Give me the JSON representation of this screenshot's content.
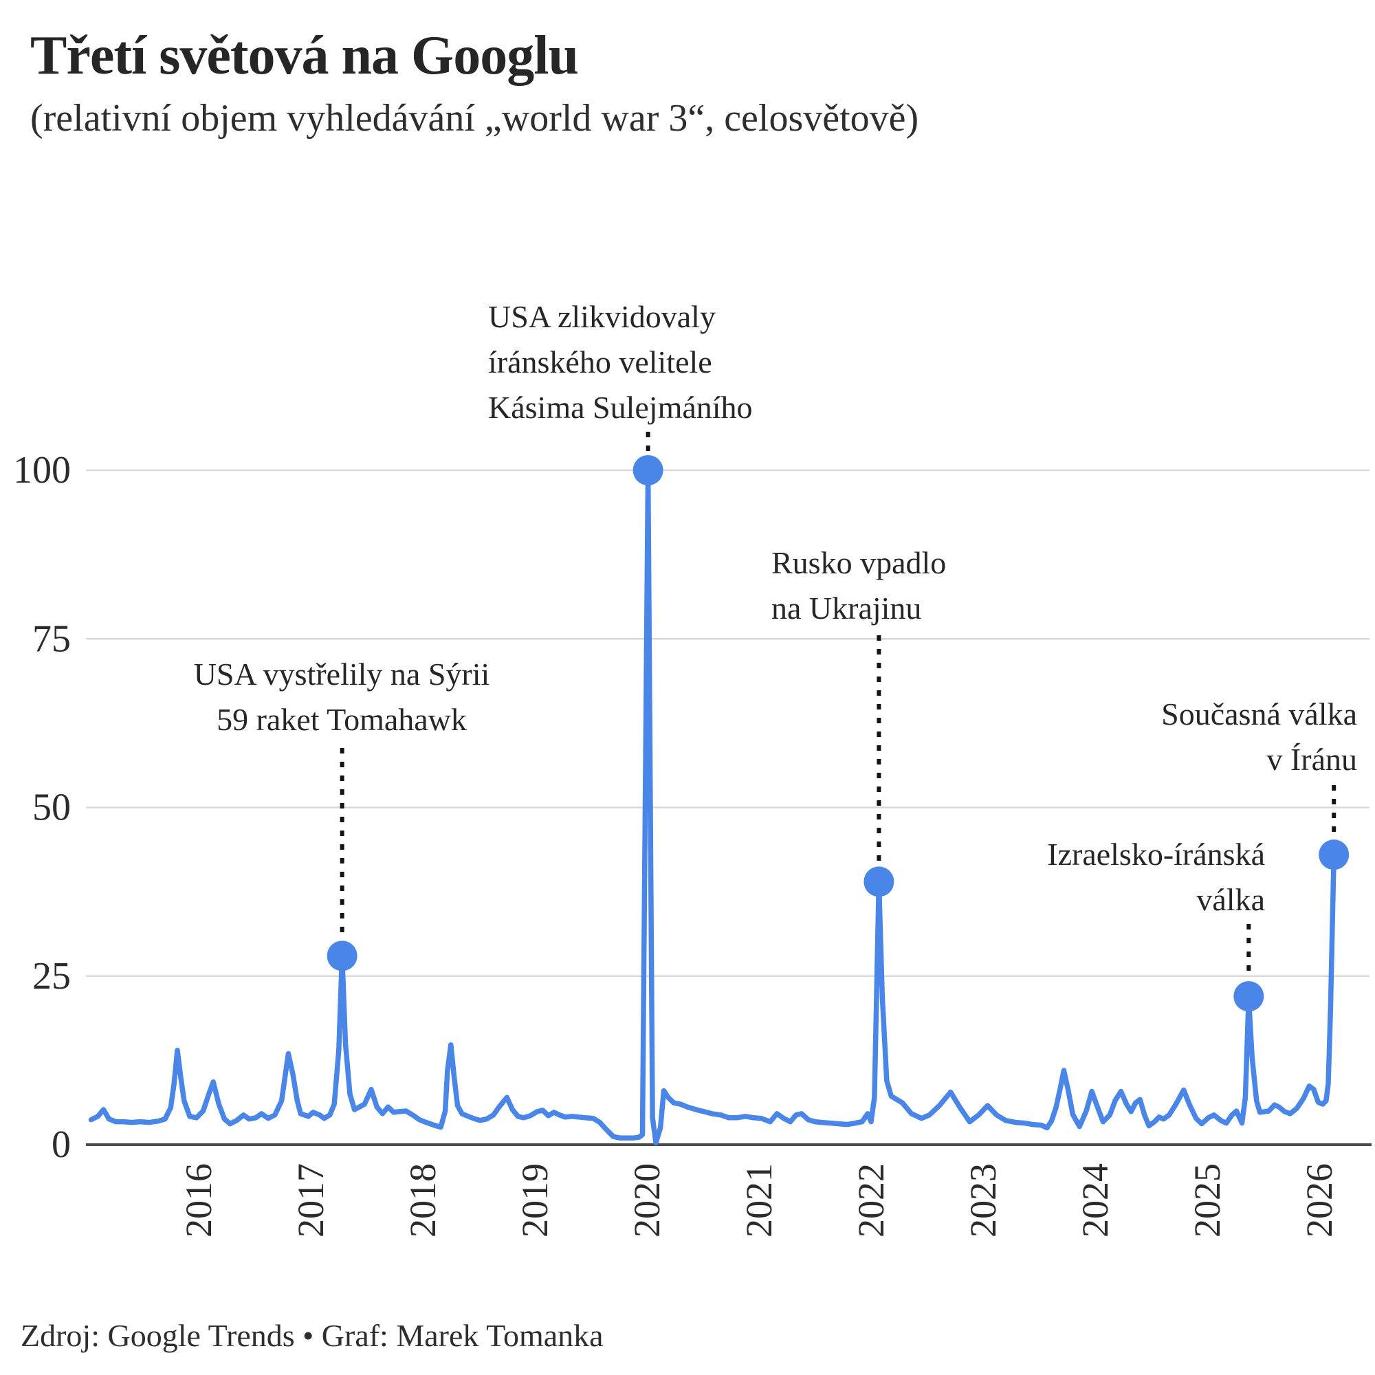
{
  "header": {
    "title": "Třetí světová na Googlu",
    "subtitle": "(relativní objem vyhledávání „world war 3“, celosvětově)"
  },
  "footer": {
    "source": "Zdroj: Google Trends • Graf: Marek Tomanka"
  },
  "annotations": {
    "soleimani": {
      "line1": "USA zlikvidovaly",
      "line2": "íránského velitele",
      "line3": "Kásima Sulejmáního"
    },
    "tomahawk": {
      "line1": "USA vystřelily na Sýrii",
      "line2": "59 raket Tomahawk"
    },
    "ukraine": {
      "line1": "Rusko vpadlo",
      "line2": "na Ukrajinu"
    },
    "izrael": {
      "line1": "Izraelsko-íránská",
      "line2": "válka"
    },
    "soucasna": {
      "line1": "Současná válka",
      "line2": "v Íránu"
    }
  },
  "chart_data": {
    "type": "line",
    "title": "Třetí světová na Googlu",
    "subtitle": "relativní objem vyhledávání „world war 3“, celosvětově",
    "xlabel": "",
    "ylabel": "",
    "x_ticks": [
      "2016",
      "2017",
      "2018",
      "2019",
      "2020",
      "2021",
      "2022",
      "2023",
      "2024",
      "2025",
      "2026"
    ],
    "y_ticks": [
      0,
      25,
      50,
      75,
      100
    ],
    "ylim": [
      0,
      100
    ],
    "xlim": [
      2015.04,
      2026.13
    ],
    "grid": "horizontal",
    "legend": "none",
    "series": [
      {
        "name": "world war 3 (relativní objem vyhledávání)",
        "points": [
          [
            2015.04,
            3.7
          ],
          [
            2015.1,
            4.2
          ],
          [
            2015.15,
            5.2
          ],
          [
            2015.2,
            3.8
          ],
          [
            2015.26,
            3.4
          ],
          [
            2015.33,
            3.4
          ],
          [
            2015.4,
            3.3
          ],
          [
            2015.48,
            3.4
          ],
          [
            2015.56,
            3.3
          ],
          [
            2015.64,
            3.5
          ],
          [
            2015.7,
            3.8
          ],
          [
            2015.75,
            5.5
          ],
          [
            2015.78,
            9.0
          ],
          [
            2015.81,
            14.0
          ],
          [
            2015.84,
            10.0
          ],
          [
            2015.87,
            6.5
          ],
          [
            2015.92,
            4.2
          ],
          [
            2015.98,
            4.0
          ],
          [
            2016.04,
            5.0
          ],
          [
            2016.09,
            7.5
          ],
          [
            2016.13,
            9.3
          ],
          [
            2016.18,
            6.0
          ],
          [
            2016.23,
            3.8
          ],
          [
            2016.28,
            3.1
          ],
          [
            2016.34,
            3.6
          ],
          [
            2016.4,
            4.4
          ],
          [
            2016.45,
            3.8
          ],
          [
            2016.51,
            4.0
          ],
          [
            2016.56,
            4.6
          ],
          [
            2016.62,
            3.9
          ],
          [
            2016.68,
            4.4
          ],
          [
            2016.74,
            6.5
          ],
          [
            2016.77,
            10.0
          ],
          [
            2016.8,
            13.5
          ],
          [
            2016.84,
            10.5
          ],
          [
            2016.88,
            6.5
          ],
          [
            2016.91,
            4.6
          ],
          [
            2016.98,
            4.2
          ],
          [
            2017.02,
            4.8
          ],
          [
            2017.08,
            4.4
          ],
          [
            2017.12,
            3.9
          ],
          [
            2017.17,
            4.4
          ],
          [
            2017.21,
            6.0
          ],
          [
            2017.25,
            14.0
          ],
          [
            2017.28,
            28.0
          ],
          [
            2017.31,
            15.0
          ],
          [
            2017.35,
            7.5
          ],
          [
            2017.39,
            5.2
          ],
          [
            2017.48,
            6.0
          ],
          [
            2017.54,
            8.2
          ],
          [
            2017.59,
            5.6
          ],
          [
            2017.64,
            4.6
          ],
          [
            2017.69,
            5.6
          ],
          [
            2017.74,
            4.8
          ],
          [
            2017.79,
            4.9
          ],
          [
            2017.85,
            5.0
          ],
          [
            2017.91,
            4.4
          ],
          [
            2017.97,
            3.7
          ],
          [
            2018.03,
            3.3
          ],
          [
            2018.1,
            2.9
          ],
          [
            2018.16,
            2.6
          ],
          [
            2018.2,
            5.0
          ],
          [
            2018.22,
            11.0
          ],
          [
            2018.25,
            14.8
          ],
          [
            2018.28,
            10.0
          ],
          [
            2018.31,
            5.8
          ],
          [
            2018.35,
            4.6
          ],
          [
            2018.39,
            4.3
          ],
          [
            2018.45,
            3.9
          ],
          [
            2018.51,
            3.6
          ],
          [
            2018.57,
            3.8
          ],
          [
            2018.63,
            4.4
          ],
          [
            2018.69,
            5.8
          ],
          [
            2018.75,
            7.0
          ],
          [
            2018.8,
            5.2
          ],
          [
            2018.85,
            4.2
          ],
          [
            2018.9,
            4.0
          ],
          [
            2018.96,
            4.3
          ],
          [
            2019.02,
            4.9
          ],
          [
            2019.07,
            5.1
          ],
          [
            2019.12,
            4.3
          ],
          [
            2019.17,
            4.8
          ],
          [
            2019.22,
            4.4
          ],
          [
            2019.27,
            4.1
          ],
          [
            2019.33,
            4.2
          ],
          [
            2019.39,
            4.1
          ],
          [
            2019.45,
            4.0
          ],
          [
            2019.52,
            3.9
          ],
          [
            2019.58,
            3.3
          ],
          [
            2019.64,
            2.2
          ],
          [
            2019.7,
            1.2
          ],
          [
            2019.76,
            1.0
          ],
          [
            2019.82,
            1.0
          ],
          [
            2019.88,
            1.0
          ],
          [
            2019.93,
            1.1
          ],
          [
            2019.96,
            1.5
          ],
          [
            2020.01,
            100.0
          ],
          [
            2020.05,
            4.0
          ],
          [
            2020.08,
            0.3
          ],
          [
            2020.12,
            2.5
          ],
          [
            2020.15,
            8.0
          ],
          [
            2020.19,
            7.0
          ],
          [
            2020.24,
            6.2
          ],
          [
            2020.3,
            6.0
          ],
          [
            2020.36,
            5.6
          ],
          [
            2020.44,
            5.2
          ],
          [
            2020.51,
            4.9
          ],
          [
            2020.58,
            4.6
          ],
          [
            2020.66,
            4.4
          ],
          [
            2020.73,
            4.0
          ],
          [
            2020.8,
            4.0
          ],
          [
            2020.88,
            4.2
          ],
          [
            2020.95,
            4.0
          ],
          [
            2021.02,
            3.9
          ],
          [
            2021.1,
            3.4
          ],
          [
            2021.16,
            4.6
          ],
          [
            2021.22,
            3.9
          ],
          [
            2021.28,
            3.4
          ],
          [
            2021.33,
            4.4
          ],
          [
            2021.38,
            4.6
          ],
          [
            2021.44,
            3.7
          ],
          [
            2021.5,
            3.4
          ],
          [
            2021.56,
            3.3
          ],
          [
            2021.64,
            3.2
          ],
          [
            2021.71,
            3.1
          ],
          [
            2021.79,
            3.0
          ],
          [
            2021.86,
            3.2
          ],
          [
            2021.92,
            3.4
          ],
          [
            2021.97,
            4.6
          ],
          [
            2022.0,
            3.4
          ],
          [
            2022.03,
            7.0
          ],
          [
            2022.07,
            38.9
          ],
          [
            2022.1,
            22.0
          ],
          [
            2022.14,
            9.5
          ],
          [
            2022.18,
            7.2
          ],
          [
            2022.28,
            6.2
          ],
          [
            2022.36,
            4.6
          ],
          [
            2022.45,
            3.9
          ],
          [
            2022.52,
            4.4
          ],
          [
            2022.61,
            5.8
          ],
          [
            2022.71,
            7.8
          ],
          [
            2022.79,
            5.6
          ],
          [
            2022.88,
            3.4
          ],
          [
            2022.96,
            4.4
          ],
          [
            2023.04,
            5.8
          ],
          [
            2023.12,
            4.4
          ],
          [
            2023.2,
            3.6
          ],
          [
            2023.29,
            3.3
          ],
          [
            2023.37,
            3.2
          ],
          [
            2023.44,
            3.0
          ],
          [
            2023.52,
            2.9
          ],
          [
            2023.57,
            2.5
          ],
          [
            2023.61,
            3.5
          ],
          [
            2023.65,
            5.5
          ],
          [
            2023.69,
            8.5
          ],
          [
            2023.72,
            11.0
          ],
          [
            2023.76,
            8.0
          ],
          [
            2023.8,
            4.5
          ],
          [
            2023.86,
            2.7
          ],
          [
            2023.92,
            5.0
          ],
          [
            2023.97,
            7.9
          ],
          [
            2024.02,
            5.6
          ],
          [
            2024.07,
            3.4
          ],
          [
            2024.13,
            4.4
          ],
          [
            2024.18,
            6.6
          ],
          [
            2024.23,
            7.9
          ],
          [
            2024.28,
            6.0
          ],
          [
            2024.32,
            4.9
          ],
          [
            2024.36,
            6.2
          ],
          [
            2024.4,
            6.7
          ],
          [
            2024.44,
            4.4
          ],
          [
            2024.48,
            2.8
          ],
          [
            2024.53,
            3.4
          ],
          [
            2024.57,
            4.1
          ],
          [
            2024.61,
            3.8
          ],
          [
            2024.66,
            4.4
          ],
          [
            2024.72,
            6.0
          ],
          [
            2024.79,
            8.1
          ],
          [
            2024.84,
            6.0
          ],
          [
            2024.9,
            3.9
          ],
          [
            2024.95,
            3.1
          ],
          [
            2025.01,
            4.0
          ],
          [
            2025.06,
            4.4
          ],
          [
            2025.12,
            3.6
          ],
          [
            2025.17,
            3.2
          ],
          [
            2025.22,
            4.4
          ],
          [
            2025.26,
            5.0
          ],
          [
            2025.31,
            3.2
          ],
          [
            2025.34,
            7.0
          ],
          [
            2025.37,
            21.8
          ],
          [
            2025.4,
            13.0
          ],
          [
            2025.44,
            6.5
          ],
          [
            2025.47,
            4.8
          ],
          [
            2025.55,
            5.0
          ],
          [
            2025.6,
            5.9
          ],
          [
            2025.64,
            5.6
          ],
          [
            2025.69,
            4.9
          ],
          [
            2025.74,
            4.6
          ],
          [
            2025.8,
            5.4
          ],
          [
            2025.86,
            6.9
          ],
          [
            2025.91,
            8.7
          ],
          [
            2025.95,
            8.2
          ],
          [
            2025.99,
            6.3
          ],
          [
            2026.03,
            6.0
          ],
          [
            2026.06,
            6.5
          ],
          [
            2026.08,
            9.0
          ],
          [
            2026.1,
            20.0
          ],
          [
            2026.13,
            42.9
          ]
        ]
      }
    ],
    "markers": [
      {
        "key": "tomahawk",
        "x": 2017.28,
        "y": 28,
        "label": "USA vystřelily na Sýrii 59 raket Tomahawk"
      },
      {
        "key": "soleimani",
        "x": 2020.01,
        "y": 100,
        "label": "USA zlikvidovaly íránského velitele Kásima Sulejmáního"
      },
      {
        "key": "ukraine",
        "x": 2022.07,
        "y": 39,
        "label": "Rusko vpadlo na Ukrajinu"
      },
      {
        "key": "izrael",
        "x": 2025.37,
        "y": 22,
        "label": "Izraelsko-íránská válka"
      },
      {
        "key": "soucasna",
        "x": 2026.13,
        "y": 43,
        "label": "Současná válka v Íránu"
      }
    ],
    "colors": {
      "line": "#4a86e8",
      "marker": "#4a86e8",
      "grid": "#d9d9d9",
      "axis": "#4c4c4c",
      "leader": "#141414",
      "text": "#2b2b2b"
    }
  }
}
